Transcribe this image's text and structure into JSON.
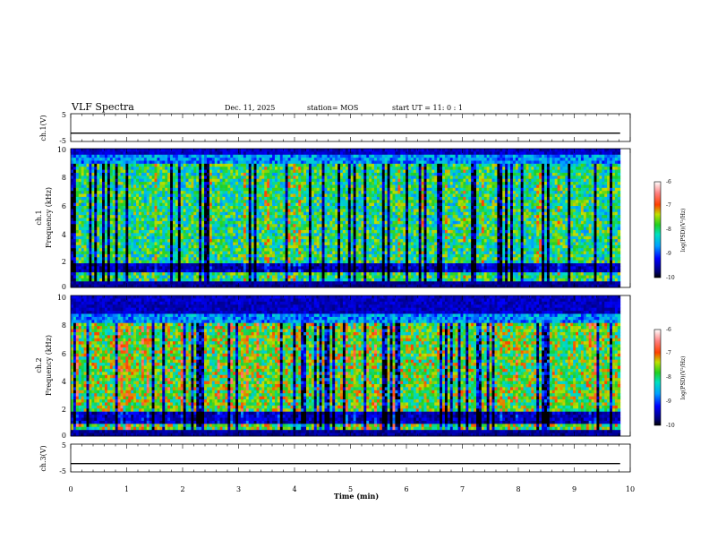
{
  "header": {
    "title": "VLF Spectra",
    "date": "Dec. 11, 2025",
    "station": "station= MOS",
    "start": "start  UT  =   11: 0  : 1"
  },
  "chart_data": {
    "type": "heatmap",
    "title": "VLF Spectra",
    "xlabel": "Time  (min)",
    "xlim": [
      0,
      10
    ],
    "xticks": [
      "0",
      "1",
      "2",
      "3",
      "4",
      "5",
      "6",
      "7",
      "8",
      "9",
      "10"
    ],
    "data_end_min": 9.82,
    "panels": [
      {
        "id": "ch1-voltage",
        "type": "line",
        "ylabel": "ch.1(V)",
        "ylim": [
          -5,
          5
        ],
        "yticks": [
          "5",
          "-5"
        ],
        "level": -2.0
      },
      {
        "id": "ch1-spectrogram",
        "type": "heatmap",
        "ylabel": [
          "ch.1",
          "Frequency  (kHz)"
        ],
        "ylim": [
          0,
          10
        ],
        "yticks": [
          "0",
          "2",
          "4",
          "6",
          "8",
          "10"
        ],
        "band_top_khz": 8.9,
        "gap_khz": [
          1.1,
          1.8
        ],
        "intensity": 0.35,
        "colorbar": {
          "label": "log(PSD)(V²/Hz)",
          "range": [
            -10,
            -6
          ],
          "ticks": [
            "-6",
            "-7",
            "-8",
            "-9",
            "-10"
          ]
        }
      },
      {
        "id": "ch2-spectrogram",
        "type": "heatmap",
        "ylabel": [
          "ch.2",
          "Frequency  (kHz)"
        ],
        "ylim": [
          0,
          10
        ],
        "yticks": [
          "0",
          "2",
          "4",
          "6",
          "8",
          "10"
        ],
        "band_top_khz": 8.0,
        "gap_khz": [
          0.9,
          1.8
        ],
        "intensity": 0.7,
        "colorbar": {
          "label": "log(PSD)(V²/Hz)",
          "range": [
            -10,
            -6
          ],
          "ticks": [
            "-6",
            "-7",
            "-8",
            "-9",
            "-10"
          ]
        }
      },
      {
        "id": "ch3-voltage",
        "type": "line",
        "ylabel": "ch.3(V)",
        "ylim": [
          -5,
          5
        ],
        "yticks": [
          "5",
          "-5"
        ],
        "level": -2.0
      }
    ]
  }
}
